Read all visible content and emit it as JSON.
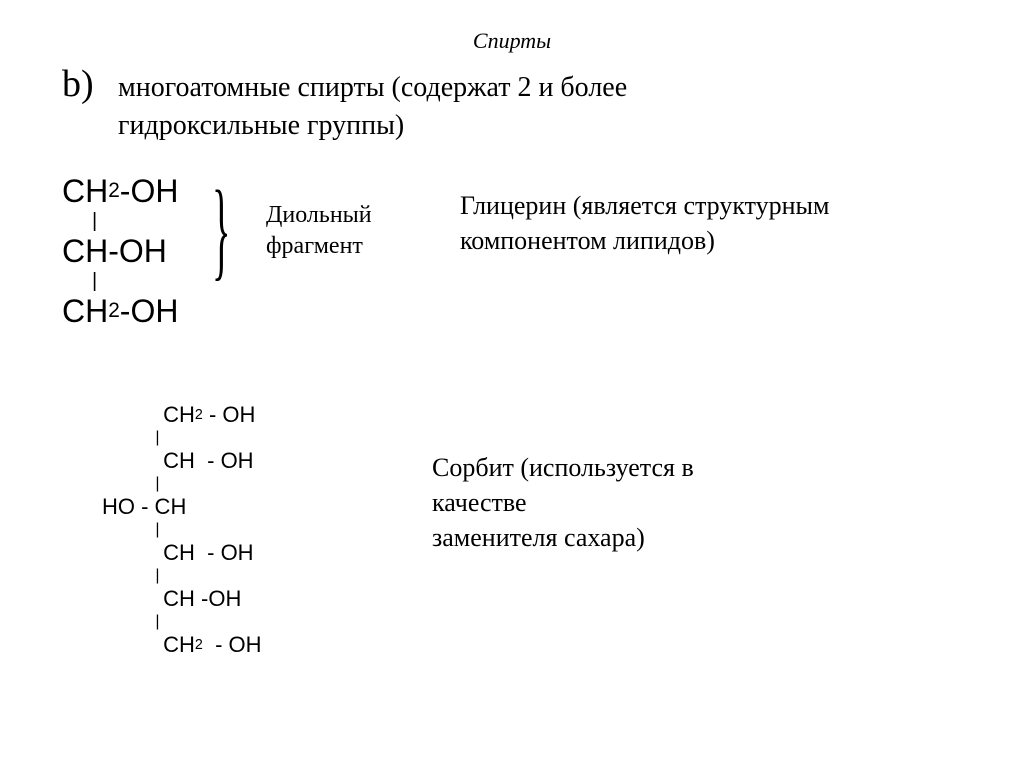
{
  "header": {
    "title": "Спирты"
  },
  "bullet": {
    "marker": "b)",
    "line1": "многоатомные спирты (содержат 2 и более",
    "line2": "гидроксильные группы)"
  },
  "glycerin": {
    "formula": {
      "row1": {
        "c": "CH",
        "sub": "2",
        "tail": "-OH"
      },
      "row2": {
        "c": "CH-OH"
      },
      "row3": {
        "c": "CH",
        "sub": "2",
        "tail": "-OH"
      }
    },
    "brace_symbol": "}",
    "diol_label_l1": "Диольный",
    "diol_label_l2": "фрагмент",
    "desc_l1": "Глицерин (является структурным",
    "desc_l2": "компонентом липидов)"
  },
  "sorbitol": {
    "formula": {
      "r1": {
        "indent": "          ",
        "c": "CH",
        "sub": "2",
        "tail": " - OH"
      },
      "r2": {
        "indent": "          ",
        "c": "CH  - OH"
      },
      "r3": {
        "indent": "",
        "c": "HO - CH"
      },
      "r4": {
        "indent": "          ",
        "c": "CH  - OH"
      },
      "r5": {
        "indent": "          ",
        "c": "CH -OH"
      },
      "r6": {
        "indent": "          ",
        "c": "CH",
        "sub": "2",
        "tail": "  - OH"
      },
      "bond_indent": "            "
    },
    "desc_l1": "Сорбит (используется в",
    "desc_l2": "качестве",
    "desc_l3": "заменителя сахара)"
  },
  "style": {
    "bg": "#ffffff",
    "text": "#000000",
    "header_fontsize": 22,
    "bullet_marker_fontsize": 38,
    "body_fontsize": 28,
    "glycerin_formula_fontsize": 32,
    "sorbitol_formula_fontsize": 22,
    "desc_fontsize": 26
  }
}
